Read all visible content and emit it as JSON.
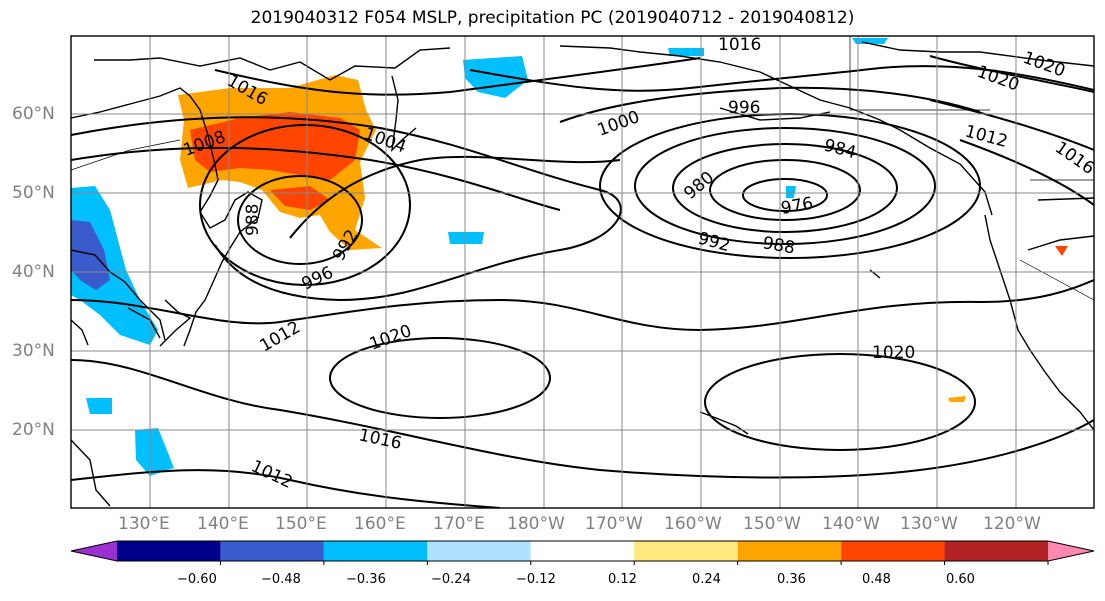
{
  "title": "2019040312 F054 MSLP, precipitation PC (2019040712 - 2019040812)",
  "map": {
    "lat_labels": [
      "60°N",
      "50°N",
      "40°N",
      "30°N",
      "20°N"
    ],
    "lon_labels": [
      "130°E",
      "140°E",
      "150°E",
      "160°E",
      "170°E",
      "180°W",
      "170°W",
      "160°W",
      "150°W",
      "140°W",
      "130°W",
      "120°W"
    ],
    "isobar_labels": [
      "1016",
      "1016",
      "1020",
      "1020",
      "1012",
      "1016",
      "1008",
      "1004",
      "1000",
      "996",
      "984",
      "980",
      "976",
      "992",
      "988",
      "988",
      "992",
      "996",
      "1012",
      "1020",
      "1020",
      "1016",
      "1012"
    ],
    "centers": [
      {
        "name": "Low",
        "lat": 49,
        "lon": -150,
        "value": 976
      },
      {
        "name": "High",
        "lat": 30,
        "lon": 172,
        "value": 1020
      },
      {
        "name": "High",
        "lat": 27,
        "lon": -145,
        "value": 1020
      }
    ]
  },
  "colorbar": {
    "colors": [
      "#9b30d0",
      "#00008b",
      "#3a5bcc",
      "#00bfff",
      "#b0e2ff",
      "#ffffff",
      "#ffe97f",
      "#ffa500",
      "#ff4500",
      "#b22222",
      "#ff88b0"
    ],
    "ticks": [
      "−0.60",
      "−0.48",
      "−0.36",
      "−0.24",
      "−0.12",
      "0.12",
      "0.24",
      "0.36",
      "0.48",
      "0.60"
    ]
  }
}
